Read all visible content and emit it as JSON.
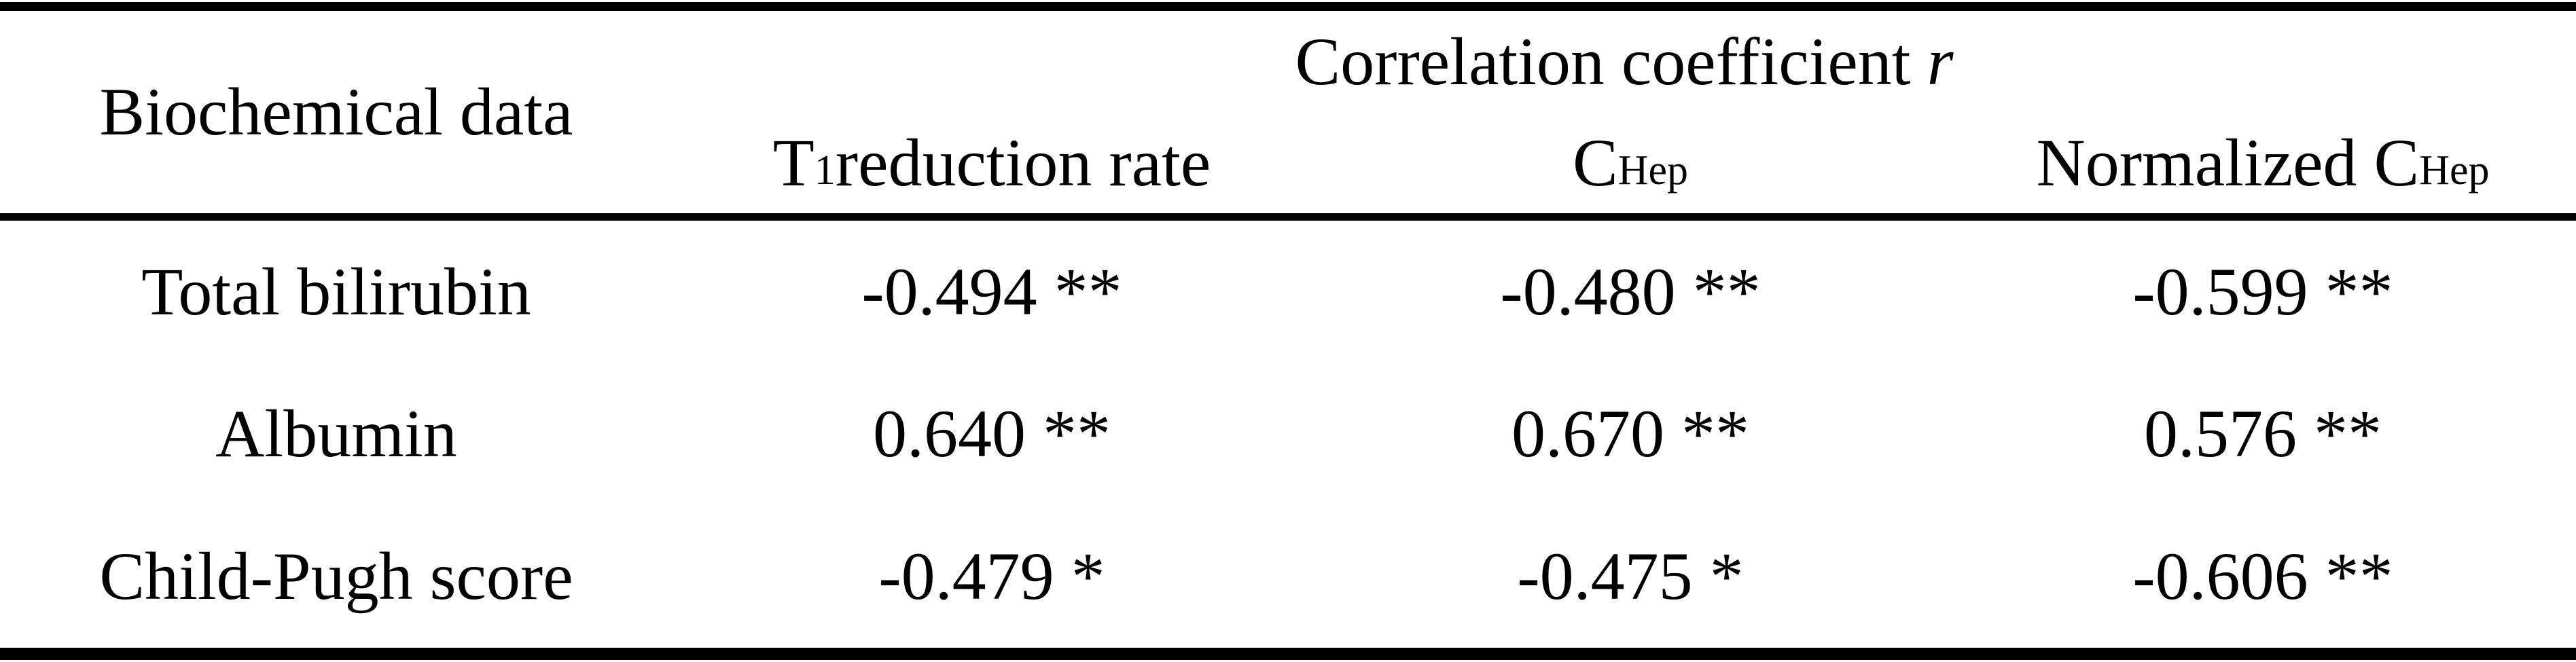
{
  "page": {
    "background_color": "#ffffff",
    "text_color": "#000000",
    "rule_color": "#000000"
  },
  "table": {
    "corner_header": "Biochemical data",
    "group_header": {
      "label": "Correlation coefficient",
      "symbol": "r"
    },
    "sub_headers": [
      {
        "pre": "T",
        "sub": "1",
        "post": " reduction rate"
      },
      {
        "pre": "C",
        "sub": "Hep",
        "post": ""
      },
      {
        "pre": "Normalized C",
        "sub": "Hep",
        "post": ""
      }
    ],
    "rows": [
      {
        "label": "Total bilirubin",
        "values": [
          "-0.494 **",
          "-0.480 **",
          "-0.599 **"
        ]
      },
      {
        "label": "Albumin",
        "values": [
          "0.640 **",
          "0.670 **",
          "0.576 **"
        ]
      },
      {
        "label": "Child-Pugh score",
        "values": [
          "-0.479 *",
          "-0.475 *",
          "-0.606 **"
        ]
      }
    ]
  }
}
